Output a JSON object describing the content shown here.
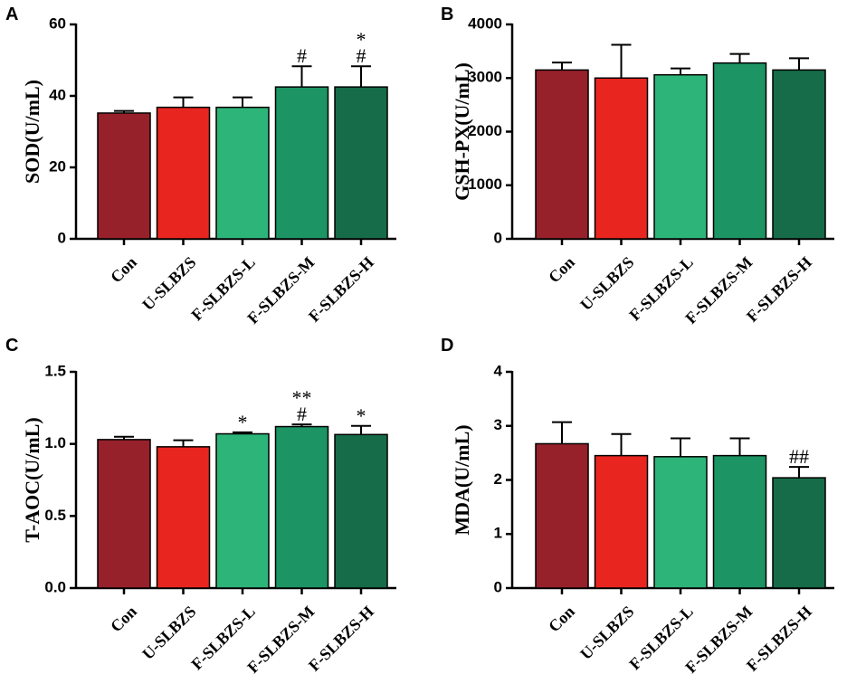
{
  "colors": {
    "Con": "#96212a",
    "U-SLBZS": "#e8251f",
    "F-SLBZS-L": "#2db478",
    "F-SLBZS-M": "#1c9464",
    "F-SLBZS-H": "#166c48"
  },
  "chart_data": [
    {
      "panel": "A",
      "type": "bar",
      "ylabel": "SOD(U/mL)",
      "ylim": [
        0,
        60
      ],
      "yticks": [
        0,
        20,
        40,
        60
      ],
      "ytick_labels": [
        "0",
        "20",
        "40",
        "60"
      ],
      "categories": [
        "Con",
        "U-SLBZS",
        "F-SLBZS-L",
        "F-SLBZS-M",
        "F-SLBZS-H"
      ],
      "values": [
        35.2,
        36.8,
        36.8,
        42.5,
        42.5
      ],
      "errors": [
        0.6,
        2.8,
        2.8,
        5.8,
        5.8
      ],
      "annotations": [
        [],
        [],
        [],
        [
          "#"
        ],
        [
          "*",
          "#"
        ]
      ]
    },
    {
      "panel": "B",
      "type": "bar",
      "ylabel": "GSH-PX(U/mL)",
      "ylim": [
        0,
        4000
      ],
      "yticks": [
        0,
        1000,
        2000,
        3000,
        4000
      ],
      "ytick_labels": [
        "0",
        "1000",
        "2000",
        "3000",
        "4000"
      ],
      "categories": [
        "Con",
        "U-SLBZS",
        "F-SLBZS-L",
        "F-SLBZS-M",
        "F-SLBZS-H"
      ],
      "values": [
        3150,
        3000,
        3060,
        3280,
        3150
      ],
      "errors": [
        140,
        620,
        120,
        170,
        220
      ],
      "annotations": [
        [],
        [],
        [],
        [],
        []
      ]
    },
    {
      "panel": "C",
      "type": "bar",
      "ylabel": "T-AOC(U/mL)",
      "ylim": [
        0,
        1.5
      ],
      "yticks": [
        0,
        0.5,
        1.0,
        1.5
      ],
      "ytick_labels": [
        "0.0",
        "0.5",
        "1.0",
        "1.5"
      ],
      "categories": [
        "Con",
        "U-SLBZS",
        "F-SLBZS-L",
        "F-SLBZS-M",
        "F-SLBZS-H"
      ],
      "values": [
        1.03,
        0.98,
        1.07,
        1.12,
        1.065
      ],
      "errors": [
        0.02,
        0.045,
        0.01,
        0.015,
        0.06
      ],
      "annotations": [
        [],
        [],
        [
          "*"
        ],
        [
          "**",
          "#"
        ],
        [
          "*"
        ]
      ]
    },
    {
      "panel": "D",
      "type": "bar",
      "ylabel": "MDA(U/mL)",
      "ylim": [
        0,
        4
      ],
      "yticks": [
        0,
        1,
        2,
        3,
        4
      ],
      "ytick_labels": [
        "0",
        "1",
        "2",
        "3",
        "4"
      ],
      "categories": [
        "Con",
        "U-SLBZS",
        "F-SLBZS-L",
        "F-SLBZS-M",
        "F-SLBZS-H"
      ],
      "values": [
        2.67,
        2.45,
        2.43,
        2.45,
        2.04
      ],
      "errors": [
        0.4,
        0.4,
        0.34,
        0.32,
        0.2
      ],
      "annotations": [
        [],
        [],
        [],
        [],
        [
          "##"
        ]
      ]
    }
  ]
}
